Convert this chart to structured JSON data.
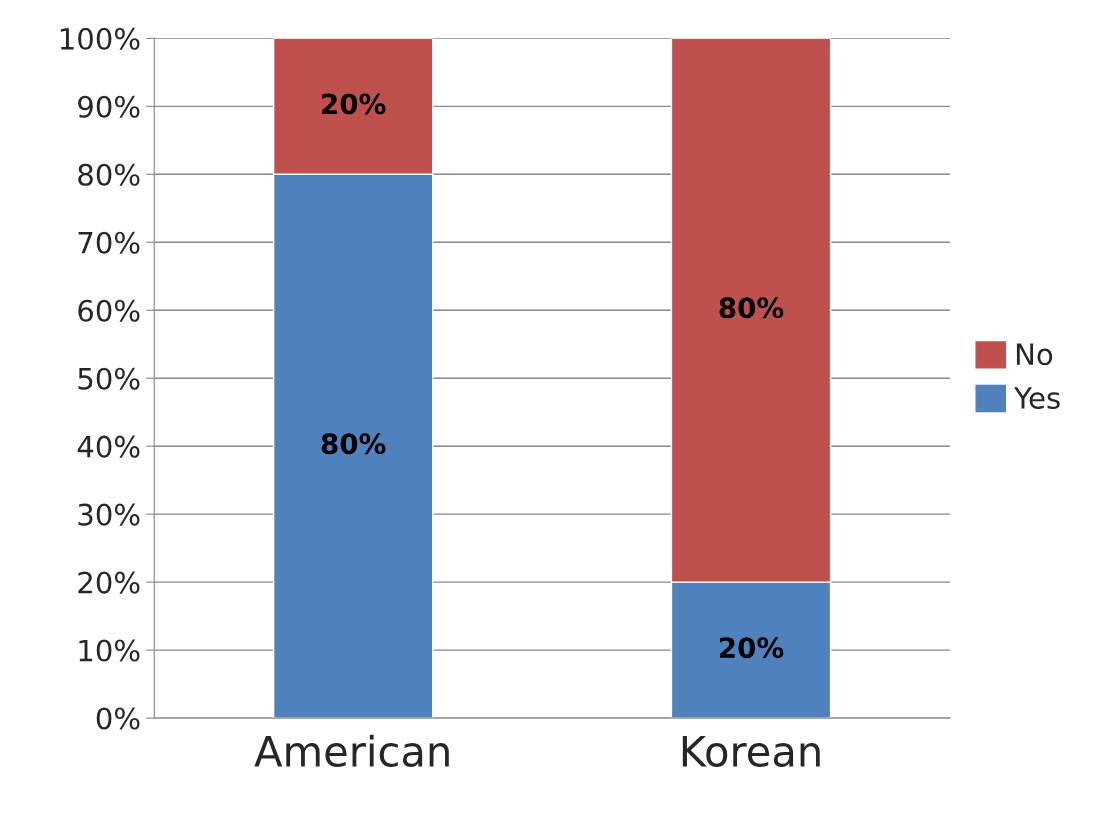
{
  "chart_data": {
    "type": "bar",
    "stacked": true,
    "categories": [
      "American",
      "Korean"
    ],
    "series": [
      {
        "name": "Yes",
        "color": "#4f81bd",
        "values": [
          80,
          20
        ],
        "value_labels": [
          "80%",
          "20%"
        ]
      },
      {
        "name": "No",
        "color": "#c0504d",
        "values": [
          20,
          80
        ],
        "value_labels": [
          "20%",
          "80%"
        ]
      }
    ],
    "ylim": [
      0,
      100
    ],
    "yticks": [
      {
        "value": 0,
        "label": "0%"
      },
      {
        "value": 10,
        "label": "10%"
      },
      {
        "value": 20,
        "label": "20%"
      },
      {
        "value": 30,
        "label": "30%"
      },
      {
        "value": 40,
        "label": "40%"
      },
      {
        "value": 50,
        "label": "50%"
      },
      {
        "value": 60,
        "label": "60%"
      },
      {
        "value": 70,
        "label": "70%"
      },
      {
        "value": 80,
        "label": "80%"
      },
      {
        "value": 90,
        "label": "90%"
      },
      {
        "value": 100,
        "label": "100%"
      }
    ],
    "grid": "y",
    "legend": "right"
  }
}
